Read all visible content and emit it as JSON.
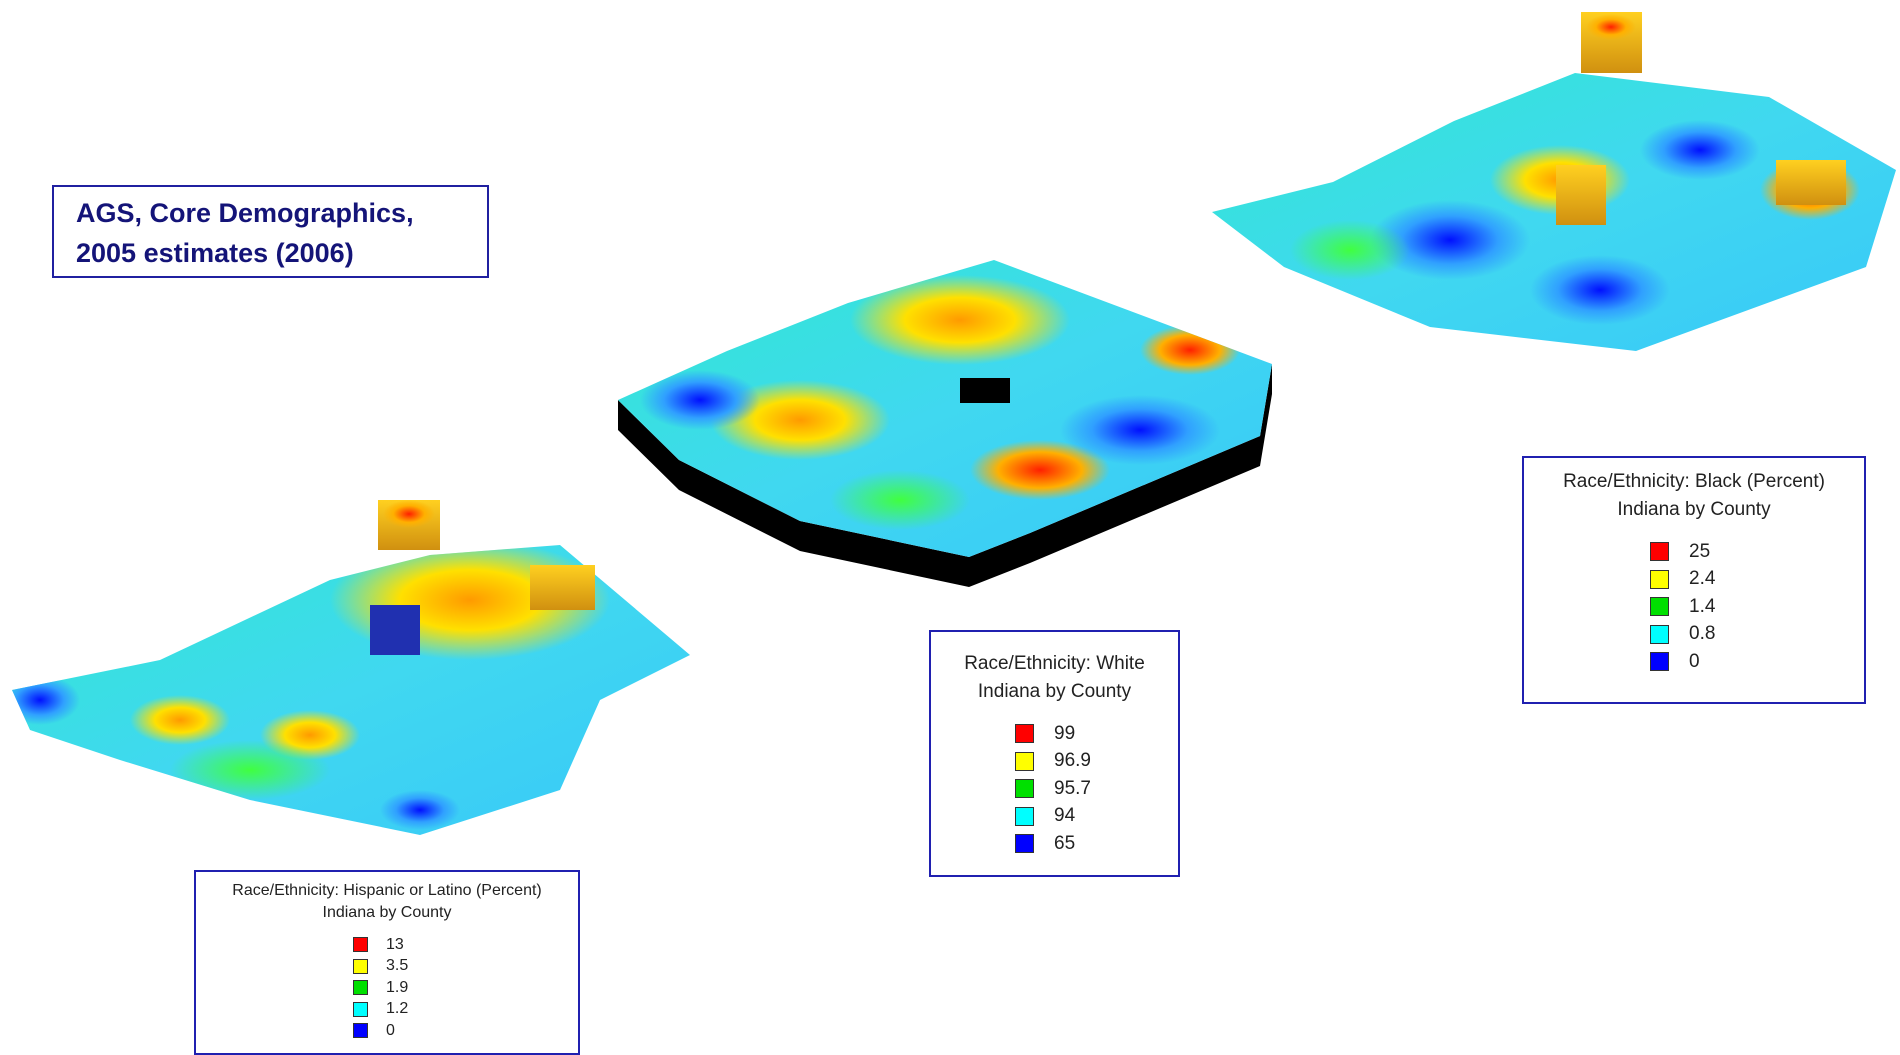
{
  "header": {
    "title_line1": "AGS, Core Demographics,",
    "title_line2": "2005 estimates (2006)"
  },
  "legends": [
    {
      "title": "Race/Ethnicity: Hispanic or Latino (Percent)",
      "subtitle": "Indiana by County",
      "items": [
        {
          "color": "#ff0000",
          "label": "13"
        },
        {
          "color": "#ffff00",
          "label": "3.5"
        },
        {
          "color": "#00e000",
          "label": "1.9"
        },
        {
          "color": "#00ffff",
          "label": "1.2"
        },
        {
          "color": "#0000ff",
          "label": "0"
        }
      ]
    },
    {
      "title": "Race/Ethnicity: White",
      "subtitle": "Indiana by County",
      "items": [
        {
          "color": "#ff0000",
          "label": "99"
        },
        {
          "color": "#ffff00",
          "label": "96.9"
        },
        {
          "color": "#00e000",
          "label": "95.7"
        },
        {
          "color": "#00ffff",
          "label": "94"
        },
        {
          "color": "#0000ff",
          "label": "65"
        }
      ]
    },
    {
      "title": "Race/Ethnicity: Black (Percent)",
      "subtitle": "Indiana by County",
      "items": [
        {
          "color": "#ff0000",
          "label": "25"
        },
        {
          "color": "#ffff00",
          "label": "2.4"
        },
        {
          "color": "#00e000",
          "label": "1.4"
        },
        {
          "color": "#00ffff",
          "label": "0.8"
        },
        {
          "color": "#0000ff",
          "label": "0"
        }
      ]
    }
  ]
}
